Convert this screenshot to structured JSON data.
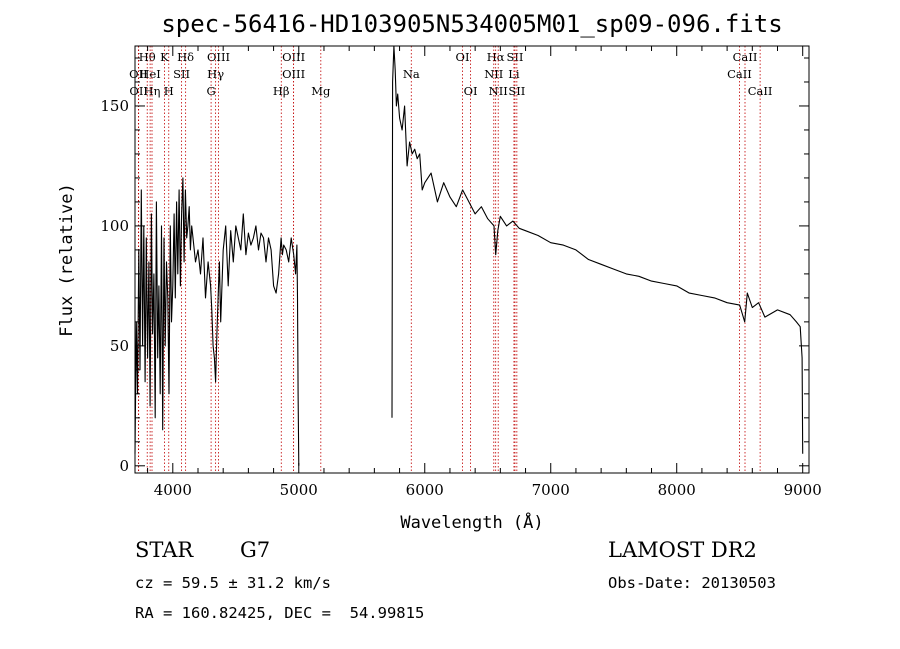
{
  "chart_data": {
    "type": "line",
    "title": "spec-56416-HD103905N534005M01_sp09-096.fits",
    "xlabel": "Wavelength (Å)",
    "ylabel": "Flux (relative)",
    "xlim": [
      3700,
      9050
    ],
    "ylim": [
      -3,
      175
    ],
    "xticks": [
      4000,
      5000,
      6000,
      7000,
      8000,
      9000
    ],
    "yticks": [
      0,
      50,
      100,
      150
    ],
    "series": [
      {
        "segment": "blue",
        "x": [
          3700,
          3710,
          3720,
          3730,
          3740,
          3750,
          3760,
          3770,
          3780,
          3790,
          3800,
          3810,
          3820,
          3830,
          3840,
          3850,
          3860,
          3870,
          3880,
          3890,
          3900,
          3910,
          3920,
          3930,
          3940,
          3950,
          3960,
          3970,
          3980,
          3990,
          4000,
          4010,
          4020,
          4030,
          4040,
          4050,
          4060,
          4070,
          4080,
          4090,
          4100,
          4110,
          4120,
          4130,
          4140,
          4150,
          4160,
          4180,
          4200,
          4220,
          4240,
          4260,
          4280,
          4300,
          4310,
          4320,
          4330,
          4340,
          4350,
          4360,
          4370,
          4380,
          4400,
          4420,
          4440,
          4460,
          4480,
          4500,
          4520,
          4540,
          4560,
          4580,
          4600,
          4620,
          4640,
          4660,
          4680,
          4700,
          4720,
          4740,
          4760,
          4780,
          4800,
          4820,
          4840,
          4860,
          4870,
          4880,
          4900,
          4920,
          4940,
          4960,
          4975,
          4985,
          4990,
          4995,
          5000
        ],
        "y": [
          5,
          60,
          30,
          90,
          40,
          115,
          50,
          100,
          35,
          95,
          45,
          85,
          25,
          105,
          55,
          80,
          20,
          110,
          45,
          75,
          30,
          100,
          15,
          95,
          50,
          85,
          70,
          30,
          100,
          60,
          75,
          105,
          70,
          110,
          80,
          115,
          75,
          105,
          120,
          85,
          115,
          95,
          100,
          108,
          90,
          100,
          95,
          85,
          90,
          80,
          95,
          70,
          85,
          75,
          65,
          50,
          45,
          35,
          55,
          70,
          85,
          60,
          90,
          100,
          75,
          98,
          85,
          100,
          95,
          90,
          105,
          88,
          97,
          92,
          95,
          100,
          90,
          97,
          95,
          85,
          95,
          90,
          75,
          72,
          80,
          95,
          88,
          92,
          90,
          85,
          95,
          88,
          80,
          92,
          70,
          30,
          0
        ]
      },
      {
        "segment": "red",
        "x": [
          5740,
          5745,
          5755,
          5765,
          5775,
          5785,
          5800,
          5820,
          5840,
          5860,
          5880,
          5900,
          5920,
          5940,
          5960,
          5980,
          6000,
          6050,
          6100,
          6150,
          6200,
          6250,
          6300,
          6350,
          6400,
          6450,
          6500,
          6550,
          6563,
          6580,
          6600,
          6650,
          6700,
          6750,
          6800,
          6900,
          7000,
          7100,
          7200,
          7300,
          7400,
          7500,
          7600,
          7700,
          7800,
          7900,
          8000,
          8100,
          8200,
          8300,
          8400,
          8500,
          8540,
          8560,
          8600,
          8650,
          8700,
          8800,
          8900,
          8950,
          8980,
          8995,
          9000
        ],
        "y": [
          20,
          160,
          175,
          165,
          150,
          155,
          145,
          140,
          150,
          125,
          135,
          130,
          132,
          128,
          130,
          115,
          118,
          122,
          110,
          118,
          112,
          108,
          115,
          110,
          105,
          108,
          103,
          100,
          88,
          98,
          104,
          100,
          102,
          99,
          98,
          96,
          93,
          92,
          90,
          86,
          84,
          82,
          80,
          79,
          77,
          76,
          75,
          72,
          71,
          70,
          68,
          67,
          60,
          72,
          66,
          68,
          62,
          65,
          63,
          60,
          58,
          45,
          5
        ]
      }
    ],
    "spectral_lines": [
      {
        "label": "Hθ",
        "x": 3797,
        "row": 0
      },
      {
        "label": "OII",
        "x": 3727,
        "row": 1
      },
      {
        "label": "OII",
        "x": 3729,
        "row": 2
      },
      {
        "label": "HeI",
        "x": 3820,
        "row": 1
      },
      {
        "label": "Hη",
        "x": 3835,
        "row": 2
      },
      {
        "label": "K",
        "x": 3934,
        "row": 0
      },
      {
        "label": "SII",
        "x": 4070,
        "row": 1
      },
      {
        "label": "H",
        "x": 3968,
        "row": 2
      },
      {
        "label": "Hδ",
        "x": 4102,
        "row": 0
      },
      {
        "label": "OIII",
        "x": 4363,
        "row": 0
      },
      {
        "label": "Hγ",
        "x": 4340,
        "row": 1
      },
      {
        "label": "G",
        "x": 4304,
        "row": 2
      },
      {
        "label": "Hβ",
        "x": 4861,
        "row": 2
      },
      {
        "label": "OIII",
        "x": 4959,
        "row": 0
      },
      {
        "label": "OIII",
        "x": 4959,
        "row": 1
      },
      {
        "label": "Mg",
        "x": 5175,
        "row": 2
      },
      {
        "label": "Na",
        "x": 5893,
        "row": 1
      },
      {
        "label": "OI",
        "x": 6300,
        "row": 0
      },
      {
        "label": "OI",
        "x": 6364,
        "row": 2
      },
      {
        "label": "Hα",
        "x": 6563,
        "row": 0
      },
      {
        "label": "SII",
        "x": 6716,
        "row": 0
      },
      {
        "label": "NII",
        "x": 6548,
        "row": 1
      },
      {
        "label": "Li",
        "x": 6708,
        "row": 1
      },
      {
        "label": "NII",
        "x": 6583,
        "row": 2
      },
      {
        "label": "SII",
        "x": 6731,
        "row": 2
      },
      {
        "label": "CaII",
        "x": 8542,
        "row": 0
      },
      {
        "label": "CaII",
        "x": 8498,
        "row": 1
      },
      {
        "label": "CaII",
        "x": 8662,
        "row": 2
      }
    ]
  },
  "info": {
    "object_class": "STAR",
    "subclass": "G7",
    "survey": "LAMOST DR2",
    "redshift": "cz = 59.5 ± 31.2 km/s",
    "obs_date": "Obs-Date: 20130503",
    "coordinates": "RA = 160.82425, DEC =  54.99815"
  }
}
